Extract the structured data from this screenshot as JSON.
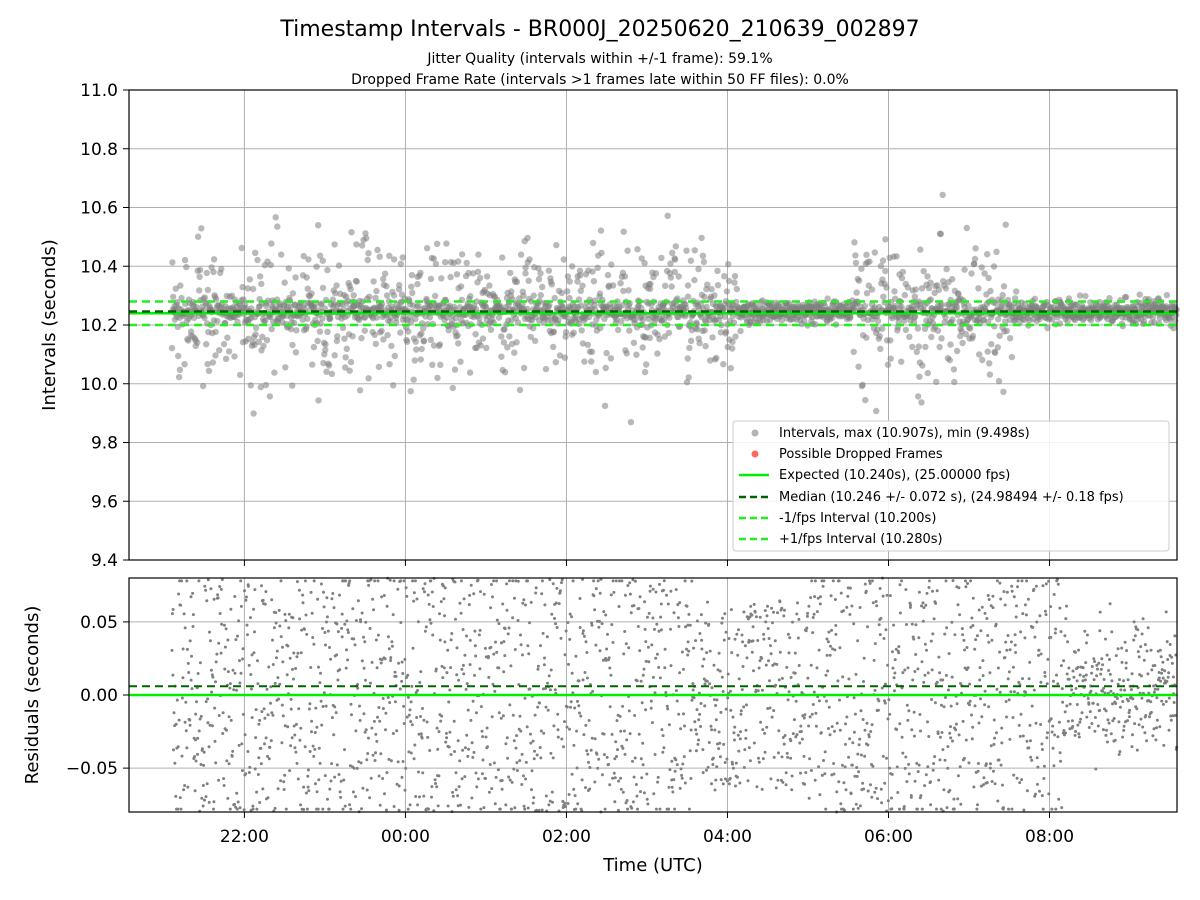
{
  "title": "Timestamp Intervals - BR000J_20250620_210639_002897",
  "subtitle_line1": "Jitter Quality (intervals within +/-1 frame): 59.1%",
  "subtitle_line2": "Dropped Frame Rate (intervals >1 frames late within 50 FF files): 0.0%",
  "colors": {
    "points": "#808080",
    "dropped": "#ff0000",
    "expected": "#00ee00",
    "median": "#006400",
    "bounds": "#22ee22",
    "grid": "#b0b0b0"
  },
  "chart_data": [
    {
      "type": "scatter",
      "ylabel": "Intervals (seconds)",
      "xlabel": "",
      "xlim": [
        "20:34",
        "09:35"
      ],
      "ylim": [
        9.4,
        11.0
      ],
      "y_ticks": [
        "9.4",
        "9.6",
        "9.8",
        "10.0",
        "10.2",
        "10.4",
        "10.6",
        "10.8",
        "11.0"
      ],
      "grid": true,
      "legend_position": "lower-right",
      "lines": {
        "expected": 10.24,
        "median": 10.246,
        "minus_one_fps": 10.2,
        "plus_one_fps": 10.28
      },
      "observation_start": "21:06",
      "observation_end": "09:35",
      "series": [
        {
          "name": "Intervals, max (10.907s), min (9.498s)",
          "max": 10.907,
          "min": 9.498
        },
        {
          "name": "Possible Dropped Frames",
          "values": []
        }
      ],
      "legend_entries": [
        {
          "label": "Intervals, max (10.907s), min (9.498s)",
          "kind": "gray-dot"
        },
        {
          "label": "Possible Dropped Frames",
          "kind": "red-dot"
        },
        {
          "label": "Expected (10.240s), (25.00000 fps)",
          "kind": "solid-green"
        },
        {
          "label": "Median (10.246 +/- 0.072 s), (24.98494 +/- 0.18 fps)",
          "kind": "dashed-darkgreen"
        },
        {
          "label": "-1/fps Interval (10.200s)",
          "kind": "dashed-green"
        },
        {
          "label": "+1/fps Interval (10.280s)",
          "kind": "dashed-green"
        }
      ]
    },
    {
      "type": "scatter",
      "ylabel": "Residuals (seconds)",
      "xlabel": "Time (UTC)",
      "xlim": [
        "20:34",
        "09:35"
      ],
      "ylim": [
        -0.08,
        0.08
      ],
      "y_ticks": [
        "−0.05",
        "0.00",
        "0.05"
      ],
      "x_ticks": [
        "22:00",
        "00:00",
        "02:00",
        "04:00",
        "06:00",
        "08:00"
      ],
      "grid": true,
      "lines": {
        "zero": 0.0,
        "median_offset": 0.006
      }
    }
  ]
}
